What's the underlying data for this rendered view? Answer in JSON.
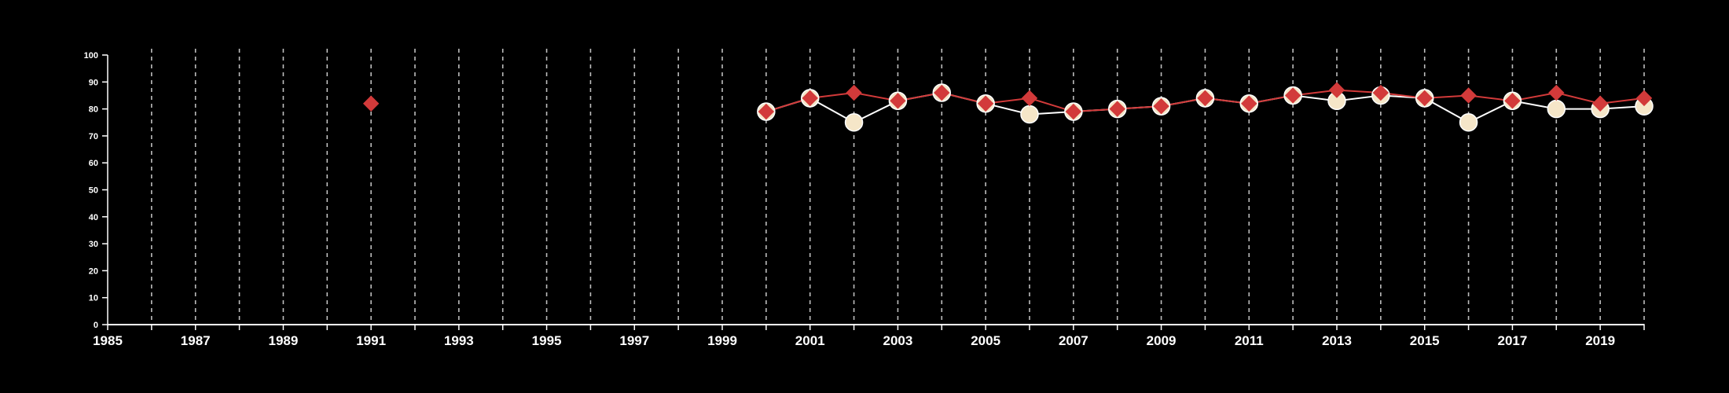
{
  "chart_data": {
    "type": "line",
    "title": "",
    "xlabel": "",
    "ylabel": "",
    "xlim": [
      1985,
      2020
    ],
    "ylim": [
      0,
      100
    ],
    "y_ticks": [
      0,
      10,
      20,
      30,
      40,
      50,
      60,
      70,
      80,
      90,
      100
    ],
    "x_ticks": [
      1985,
      1987,
      1989,
      1991,
      1993,
      1995,
      1997,
      1999,
      2001,
      2003,
      2005,
      2007,
      2009,
      2011,
      2013,
      2015,
      2017,
      2019
    ],
    "x_tick_labels": [
      "1985",
      "1987",
      "1989",
      "1991",
      "1993",
      "1995",
      "1997",
      "1999",
      "2001",
      "2003",
      "2005",
      "2007",
      "2009",
      "2011",
      "2013",
      "2015",
      "2017",
      "2019"
    ],
    "y_tick_labels": [
      "0",
      "10",
      "20",
      "30",
      "40",
      "50",
      "60",
      "70",
      "80",
      "90",
      "100"
    ],
    "vertical_grid": "dashed, every year 1986-2020",
    "legend": "none",
    "background_color": "#000000",
    "series": [
      {
        "marker": "circle",
        "color": "#f5e6c8",
        "line_color": "#ffffff",
        "points": [
          [
            2000,
            79
          ],
          [
            2001,
            84
          ],
          [
            2002,
            75
          ],
          [
            2003,
            83
          ],
          [
            2004,
            86
          ],
          [
            2005,
            82
          ],
          [
            2006,
            78
          ],
          [
            2007,
            79
          ],
          [
            2008,
            80
          ],
          [
            2009,
            81
          ],
          [
            2010,
            84
          ],
          [
            2011,
            82
          ],
          [
            2012,
            85
          ],
          [
            2013,
            83
          ],
          [
            2014,
            85
          ],
          [
            2015,
            84
          ],
          [
            2016,
            75
          ],
          [
            2017,
            83
          ],
          [
            2018,
            80
          ],
          [
            2019,
            80
          ],
          [
            2020,
            81
          ]
        ]
      },
      {
        "marker": "diamond",
        "color": "#d23a3a",
        "line_color": "#d23a3a",
        "points": [
          [
            1991,
            82
          ],
          [
            2000,
            79
          ],
          [
            2001,
            84
          ],
          [
            2002,
            86
          ],
          [
            2003,
            83
          ],
          [
            2004,
            86
          ],
          [
            2005,
            82
          ],
          [
            2006,
            84
          ],
          [
            2007,
            79
          ],
          [
            2008,
            80
          ],
          [
            2009,
            81
          ],
          [
            2010,
            84
          ],
          [
            2011,
            82
          ],
          [
            2012,
            85
          ],
          [
            2013,
            87
          ],
          [
            2014,
            86
          ],
          [
            2015,
            84
          ],
          [
            2016,
            85
          ],
          [
            2017,
            83
          ],
          [
            2018,
            86
          ],
          [
            2019,
            82
          ],
          [
            2020,
            84
          ]
        ]
      }
    ]
  }
}
